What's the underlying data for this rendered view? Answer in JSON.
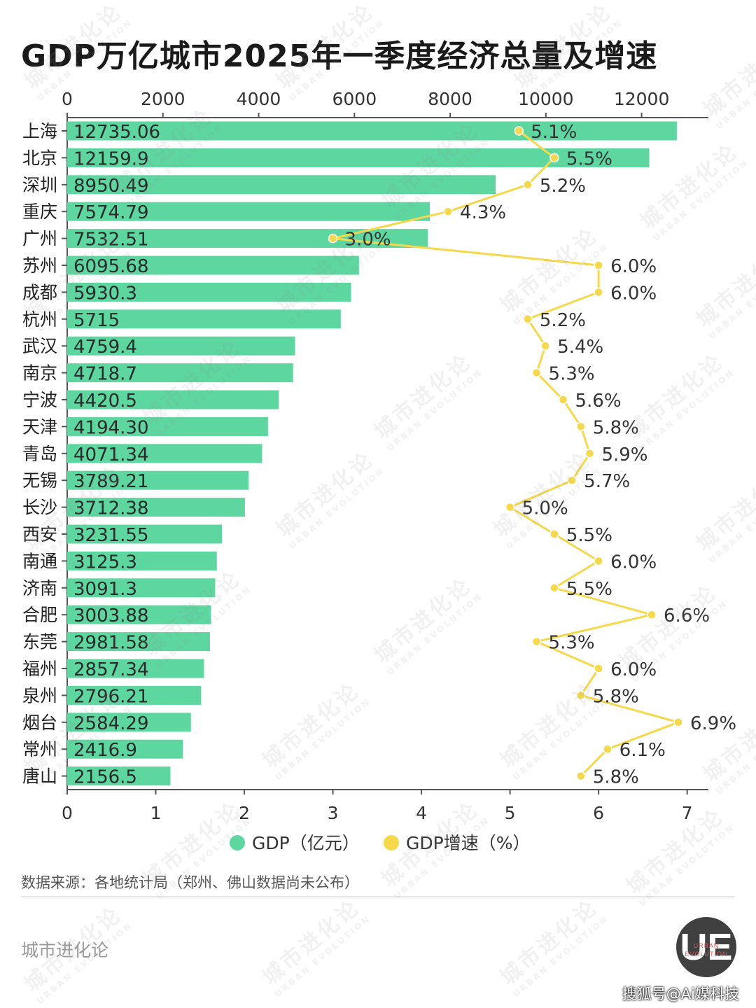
{
  "title": "GDP万亿城市2025年一季度经济总量及增速",
  "source": "数据来源：各地统计局（郑州、佛山数据尚未公布）",
  "brand": "城市进化论",
  "watermark": {
    "main": "城市进化论",
    "sub": "URBAN EVOLUTION"
  },
  "logo": {
    "letters": "UE",
    "line1": "URBAN",
    "line2": "EVOLUTION"
  },
  "credit": "搜狐号@Ai媒科技",
  "chart_data": {
    "type": "bar",
    "orientation": "horizontal",
    "categories": [
      "上海",
      "北京",
      "深圳",
      "重庆",
      "广州",
      "苏州",
      "成都",
      "杭州",
      "武汉",
      "南京",
      "宁波",
      "天津",
      "青岛",
      "无锡",
      "长沙",
      "西安",
      "南通",
      "济南",
      "合肥",
      "东莞",
      "福州",
      "泉州",
      "烟台",
      "常州",
      "唐山"
    ],
    "series": [
      {
        "name": "GDP（亿元）",
        "type": "bar",
        "axis": "top",
        "color": "#5dd6a0",
        "labels": [
          "12735.06",
          "12159.9",
          "8950.49",
          "7574.79",
          "7532.51",
          "6095.68",
          "5930.3",
          "5715",
          "4759.4",
          "4718.7",
          "4420.5",
          "4194.30",
          "4071.34",
          "3789.21",
          "3712.38",
          "3231.55",
          "3125.3",
          "3091.3",
          "3003.88",
          "2981.58",
          "2857.34",
          "2796.21",
          "2584.29",
          "2416.9",
          "2156.5"
        ],
        "values": [
          12735.06,
          12159.9,
          8950.49,
          7574.79,
          7532.51,
          6095.68,
          5930.3,
          5715,
          4759.4,
          4718.7,
          4420.5,
          4194.3,
          4071.34,
          3789.21,
          3712.38,
          3231.55,
          3125.3,
          3091.3,
          3003.88,
          2981.58,
          2857.34,
          2796.21,
          2584.29,
          2416.9,
          2156.5
        ]
      },
      {
        "name": "GDP增速（%）",
        "type": "line",
        "axis": "bottom",
        "color": "#f5d94a",
        "labels": [
          "5.1%",
          "5.5%",
          "5.2%",
          "4.3%",
          "3.0%",
          "6.0%",
          "6.0%",
          "5.2%",
          "5.4%",
          "5.3%",
          "5.6%",
          "5.8%",
          "5.9%",
          "5.7%",
          "5.0%",
          "5.5%",
          "6.0%",
          "5.5%",
          "6.6%",
          "5.3%",
          "6.0%",
          "5.8%",
          "6.9%",
          "6.1%",
          "5.8%"
        ],
        "values": [
          5.1,
          5.5,
          5.2,
          4.3,
          3.0,
          6.0,
          6.0,
          5.2,
          5.4,
          5.3,
          5.6,
          5.8,
          5.9,
          5.7,
          5.0,
          5.5,
          6.0,
          5.5,
          6.6,
          5.3,
          6.0,
          5.8,
          6.9,
          6.1,
          5.8
        ]
      }
    ],
    "top_axis": {
      "range": [
        0,
        13395
      ],
      "ticks": [
        "0",
        "2000",
        "4000",
        "6000",
        "8000",
        "10000",
        "12000"
      ]
    },
    "bottom_axis": {
      "range": [
        0,
        7.24
      ],
      "ticks": [
        "0",
        "1",
        "2",
        "3",
        "4",
        "5",
        "6",
        "7"
      ]
    },
    "grid": false,
    "legend_position": "bottom-center"
  }
}
